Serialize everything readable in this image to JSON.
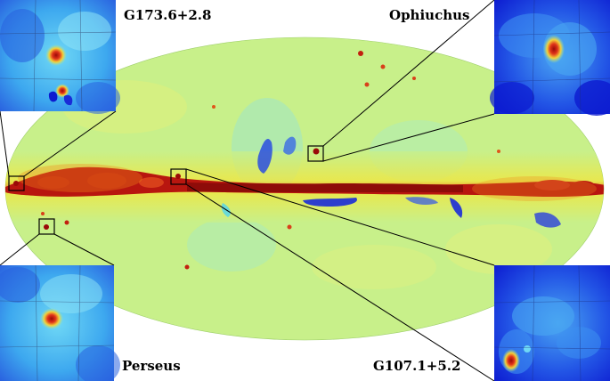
{
  "figure": {
    "colors": {
      "background_level": "#c8f08a",
      "cold_blue": "#1a2bd8",
      "cool_cyan": "#4fd4f0",
      "warm_yellow": "#f3e53a",
      "hot_orange": "#f08a1a",
      "hot_red": "#b8160f",
      "inset_frame": "#000000"
    },
    "map_projection": "Mollweide all-sky map",
    "insets": [
      {
        "label": "G173.6+2.8",
        "position": "top-left"
      },
      {
        "label": "Ophiuchus",
        "position": "top-right"
      },
      {
        "label": "Perseus",
        "position": "bottom-left"
      },
      {
        "label": "G107.1+5.2",
        "position": "bottom-right"
      }
    ]
  }
}
